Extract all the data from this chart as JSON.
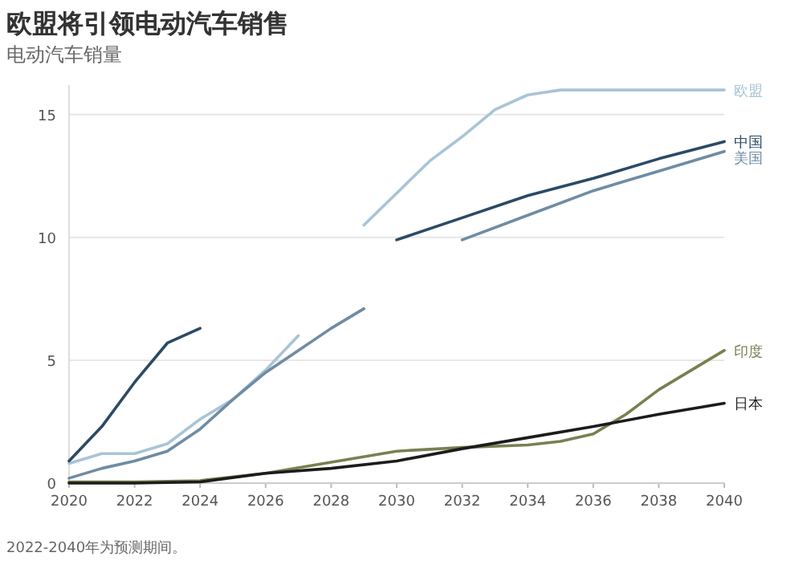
{
  "chart_data": {
    "type": "line",
    "title": "欧盟将引领电动汽车销售",
    "subtitle": "电动汽车销量",
    "annotations": [
      "2022-2040年为预测期间。"
    ],
    "xlim": [
      2020,
      2040
    ],
    "xticks": [
      2020,
      2022,
      2024,
      2026,
      2028,
      2030,
      2032,
      2034,
      2036,
      2038,
      2040
    ],
    "ylim": [
      0,
      16.2
    ],
    "yticks": [
      0,
      5,
      10,
      15
    ],
    "grid": "y",
    "line_style": "solid",
    "marker": "none",
    "series": [
      {
        "name": "欧盟",
        "color": "#a9c4d6",
        "x": [
          2020,
          2021,
          2022,
          2023,
          2024,
          2025,
          2026,
          2027,
          2028,
          2029,
          2030,
          2031,
          2032,
          2033,
          2034,
          2035,
          2036,
          2038,
          2040
        ],
        "values": [
          0.8,
          1.2,
          1.2,
          1.6,
          2.6,
          3.4,
          4.6,
          6.0,
          null,
          10.5,
          11.8,
          13.1,
          14.1,
          15.2,
          15.8,
          16.0,
          16.0,
          16.0,
          16.0
        ]
      },
      {
        "name": "中国",
        "color": "#2b4a66",
        "x": [
          2020,
          2021,
          2022,
          2023,
          2024,
          2025,
          2026,
          2027,
          2028,
          2029,
          2030,
          2032,
          2034,
          2036,
          2038,
          2040
        ],
        "values": [
          0.9,
          2.3,
          4.1,
          5.7,
          6.3,
          null,
          null,
          null,
          null,
          null,
          9.9,
          10.8,
          11.7,
          12.4,
          13.2,
          13.9
        ]
      },
      {
        "name": "美国",
        "color": "#6f8ca3",
        "x": [
          2020,
          2021,
          2022,
          2023,
          2024,
          2025,
          2026,
          2027,
          2028,
          2029,
          2030,
          2031,
          2032,
          2034,
          2036,
          2038,
          2040
        ],
        "values": [
          0.2,
          0.6,
          0.9,
          1.3,
          2.2,
          3.4,
          4.5,
          5.4,
          6.3,
          7.1,
          null,
          null,
          9.9,
          10.9,
          11.9,
          12.7,
          13.5
        ]
      },
      {
        "name": "印度",
        "color": "#7a7f52",
        "x": [
          2020,
          2022,
          2024,
          2026,
          2028,
          2030,
          2032,
          2034,
          2035,
          2036,
          2037,
          2038,
          2039,
          2040
        ],
        "values": [
          0.05,
          0.05,
          0.1,
          0.4,
          0.85,
          1.3,
          1.45,
          1.55,
          1.7,
          2.0,
          2.8,
          3.8,
          4.6,
          5.4
        ]
      },
      {
        "name": "日本",
        "color": "#1c1c1c",
        "x": [
          2020,
          2022,
          2024,
          2026,
          2028,
          2030,
          2032,
          2034,
          2036,
          2038,
          2040
        ],
        "values": [
          0.0,
          0.0,
          0.05,
          0.4,
          0.6,
          0.9,
          1.4,
          1.85,
          2.3,
          2.8,
          3.25
        ]
      }
    ]
  }
}
